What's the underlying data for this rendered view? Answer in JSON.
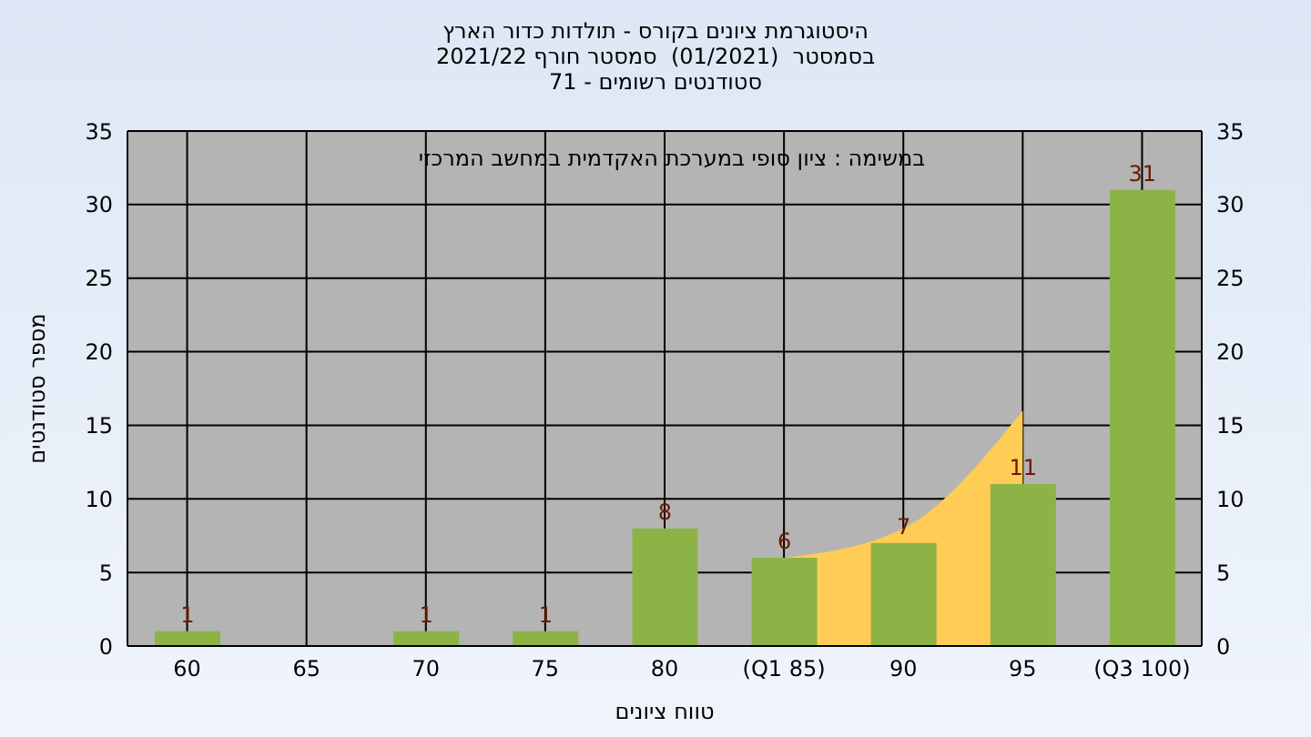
{
  "chart_data": {
    "type": "bar",
    "title": "היסטוגרמת ציונים בקורס - תולדות כדור הארץ",
    "subtitle": "בסמסטר  (01/2021)  סמסטר חורף 2021/22\nסטודנטים רשומים - 71",
    "xlabel": "טווח ציונים",
    "ylabel": "מספר סטודנטים",
    "annotations": [
      "במשימה : ציון סופי במערכת האקדמית במחשב המרכזי"
    ],
    "categories": [
      "60",
      "65",
      "70",
      "75",
      "80",
      "(Q1 85)",
      "90",
      "95",
      "(Q3 100)"
    ],
    "series": [
      {
        "type": "area",
        "color": "#ffcc55",
        "values": [
          null,
          null,
          null,
          null,
          null,
          6,
          8,
          16,
          null
        ]
      },
      {
        "color": "#8db347",
        "values": [
          1,
          null,
          1,
          1,
          8,
          6,
          7,
          11,
          31
        ],
        "value_labels": [
          "1",
          null,
          "1",
          "1",
          "8",
          "6",
          "7",
          "11",
          "31"
        ]
      }
    ],
    "ylim": [
      0,
      35
    ],
    "yticks": [
      0,
      5,
      10,
      15,
      20,
      25,
      30,
      35
    ],
    "y2lim": [
      0,
      35
    ],
    "y2ticks": [
      0,
      5,
      10,
      15,
      20,
      25,
      30,
      35
    ],
    "grid": true
  }
}
